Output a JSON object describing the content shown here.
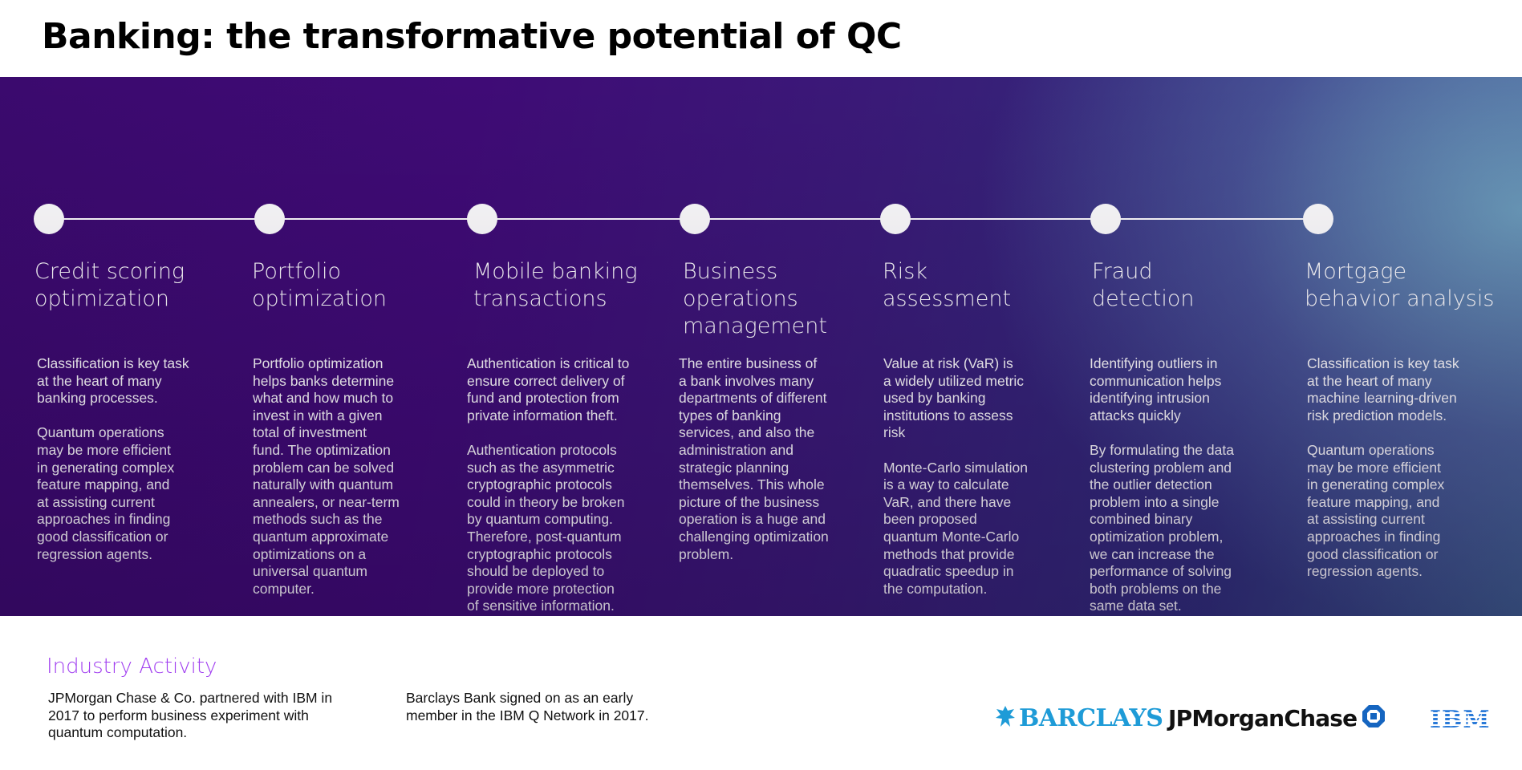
{
  "page": {
    "title": "Banking: the transformative potential of QC"
  },
  "timeline": {
    "columns": [
      {
        "title": "Credit scoring\noptimization",
        "body": "Classification is key task\nat the heart of many\nbanking processes.\n\nQuantum operations\nmay be more efficient\nin generating complex\nfeature mapping, and\nat assisting current\napproaches in finding\ngood classification or\nregression agents."
      },
      {
        "title": "Portfolio\noptimization",
        "body": "Portfolio optimization\nhelps banks determine\nwhat and how much to\ninvest in with a given\ntotal of investment\nfund. The optimization\nproblem can be solved\nnaturally with quantum\nannealers, or near-term\nmethods such as the\nquantum approximate\noptimizations on a\nuniversal quantum\ncomputer."
      },
      {
        "title": "Mobile banking\ntransactions",
        "body": "Authentication is critical to\nensure correct delivery of\nfund and protection from\nprivate information theft.\n\nAuthentication protocols\nsuch as the asymmetric\ncryptographic protocols\ncould in theory be broken\nby quantum computing.\nTherefore, post-quantum\ncryptographic protocols\nshould be deployed to\nprovide more protection\nof sensitive information."
      },
      {
        "title": "Business\noperations\nmanagement",
        "body": "The entire business of\na bank involves many\ndepartments of different\ntypes of banking\nservices, and also the\nadministration and\nstrategic planning\nthemselves. This whole\npicture of the business\noperation is a huge and\nchallenging optimization\nproblem."
      },
      {
        "title": "Risk\nassessment",
        "body": "Value at risk (VaR) is\na widely utilized metric\nused by banking\ninstitutions to assess\nrisk\n\nMonte-Carlo simulation\nis a way to calculate\nVaR, and there have\nbeen proposed\nquantum Monte-Carlo\nmethods that provide\nquadratic speedup in\nthe computation."
      },
      {
        "title": "Fraud\ndetection",
        "body": "Identifying outliers in\ncommunication helps\nidentifying intrusion\nattacks quickly\n\nBy formulating the data\nclustering problem and\nthe outlier detection\nproblem into a single\ncombined binary\noptimization problem,\nwe can increase the\nperformance of solving\nboth problems on the\nsame data set."
      },
      {
        "title": "Mortgage\nbehavior analysis",
        "body": "Classification is key task\nat the heart of many\nmachine learning-driven\nrisk prediction models.\n\nQuantum operations\nmay be more efficient\nin generating complex\nfeature mapping, and\nat assisting current\napproaches in finding\ngood classification or\nregression agents."
      }
    ]
  },
  "industry": {
    "heading": "Industry Activity",
    "items": [
      "JPMorgan Chase & Co. partnered with IBM in\n2017 to perform business experiment with\nquantum computation.",
      "Barclays Bank signed on as an early\nmember in the IBM Q Network in 2017."
    ]
  },
  "logos": {
    "barclays": "BARCLAYS",
    "jpmorgan": "JPMorganChase",
    "ibm": "IBM"
  },
  "colors": {
    "accent_purple": "#a13ff0",
    "band_dark": "#3b0a6e",
    "band_light": "#5a90b0",
    "barclays_blue": "#1e9bd7",
    "ibm_blue": "#2a7ad8"
  },
  "icons": [
    "eagle-icon",
    "octagon-icon"
  ]
}
